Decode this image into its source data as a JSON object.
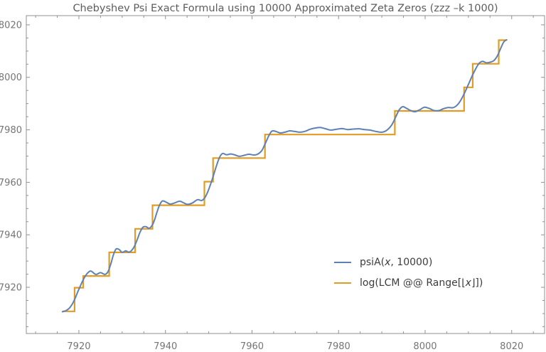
{
  "title": "Chebyshev Psi Exact Formula using 10000 Approximated Zeta Zeros (zzz –k 1000)",
  "colors": {
    "psi_line": "#5e81b5",
    "lcm_line": "#e09c24",
    "frame": "#919191",
    "tick_label": "#757575",
    "title_text": "#5d5d5d",
    "legend_text": "#3c3c3c",
    "background": "#ffffff"
  },
  "legend": {
    "psi": {
      "pre": "psiA(",
      "var": "x",
      "post": ", 10000)"
    },
    "lcm": {
      "pre": "log(LCM @@ Range[⌊",
      "var": "x",
      "post": "⌋])"
    }
  },
  "chart_data": {
    "type": "line",
    "title": "Chebyshev Psi Exact Formula using 10000 Approximated Zeta Zeros (zzz –k 1000)",
    "xlabel": "",
    "ylabel": "",
    "xlim": [
      7907.85,
      8027.6
    ],
    "ylim": [
      7902.4,
      8023.5
    ],
    "x_major_ticks": [
      7920,
      7940,
      7960,
      7980,
      8000,
      8020
    ],
    "y_major_ticks": [
      7920,
      7940,
      7960,
      7980,
      8000,
      8020
    ],
    "minor_tick_step": 5,
    "grid": false,
    "legend_position": "inside-bottom-right",
    "series": [
      {
        "name": "psiA(x, 10000)",
        "style": "smooth",
        "color": "#5e81b5",
        "points": [
          [
            7916.2,
            7910.7
          ],
          [
            7917.0,
            7911.1
          ],
          [
            7917.7,
            7911.9
          ],
          [
            7918.4,
            7913.4
          ],
          [
            7919.1,
            7915.7
          ],
          [
            7919.8,
            7918.5
          ],
          [
            7920.5,
            7921.1
          ],
          [
            7921.2,
            7923.5
          ],
          [
            7922.0,
            7925.4
          ],
          [
            7922.8,
            7926.2
          ],
          [
            7923.9,
            7924.9
          ],
          [
            7925.0,
            7925.6
          ],
          [
            7926.0,
            7924.9
          ],
          [
            7926.7,
            7925.9
          ],
          [
            7927.4,
            7929.0
          ],
          [
            7928.0,
            7932.5
          ],
          [
            7928.6,
            7934.6
          ],
          [
            7929.3,
            7934.4
          ],
          [
            7930.0,
            7933.3
          ],
          [
            7930.8,
            7933.9
          ],
          [
            7931.5,
            7933.4
          ],
          [
            7932.1,
            7933.9
          ],
          [
            7932.7,
            7935.2
          ],
          [
            7933.4,
            7937.8
          ],
          [
            7934.1,
            7940.9
          ],
          [
            7934.8,
            7942.9
          ],
          [
            7935.5,
            7943.1
          ],
          [
            7936.2,
            7942.5
          ],
          [
            7936.8,
            7943.3
          ],
          [
            7937.4,
            7945.3
          ],
          [
            7938.0,
            7948.4
          ],
          [
            7938.6,
            7951.2
          ],
          [
            7939.3,
            7952.9
          ],
          [
            7940.2,
            7952.4
          ],
          [
            7941.1,
            7951.7
          ],
          [
            7942.2,
            7952.2
          ],
          [
            7943.3,
            7952.8
          ],
          [
            7944.3,
            7952.1
          ],
          [
            7945.2,
            7951.6
          ],
          [
            7946.3,
            7952.2
          ],
          [
            7947.4,
            7953.4
          ],
          [
            7948.4,
            7953.1
          ],
          [
            7949.2,
            7954.4
          ],
          [
            7950.0,
            7957.3
          ],
          [
            7950.9,
            7961.6
          ],
          [
            7951.8,
            7966.4
          ],
          [
            7952.5,
            7969.5
          ],
          [
            7953.2,
            7971.0
          ],
          [
            7954.1,
            7970.5
          ],
          [
            7955.1,
            7970.8
          ],
          [
            7956.1,
            7970.4
          ],
          [
            7957.1,
            7969.9
          ],
          [
            7958.2,
            7970.3
          ],
          [
            7959.3,
            7970.7
          ],
          [
            7960.4,
            7970.4
          ],
          [
            7961.4,
            7970.8
          ],
          [
            7962.3,
            7972.2
          ],
          [
            7963.1,
            7974.9
          ],
          [
            7963.9,
            7977.8
          ],
          [
            7964.6,
            7979.5
          ],
          [
            7965.5,
            7979.4
          ],
          [
            7966.5,
            7978.8
          ],
          [
            7967.6,
            7979.1
          ],
          [
            7968.7,
            7979.6
          ],
          [
            7969.8,
            7979.4
          ],
          [
            7971.0,
            7979.1
          ],
          [
            7972.2,
            7979.4
          ],
          [
            7973.4,
            7980.2
          ],
          [
            7974.6,
            7980.7
          ],
          [
            7975.8,
            7980.9
          ],
          [
            7977.0,
            7980.4
          ],
          [
            7978.2,
            7979.9
          ],
          [
            7979.5,
            7980.2
          ],
          [
            7980.8,
            7980.5
          ],
          [
            7982.1,
            7980.1
          ],
          [
            7983.4,
            7980.3
          ],
          [
            7984.7,
            7980.4
          ],
          [
            7986.0,
            7980.1
          ],
          [
            7987.3,
            7979.9
          ],
          [
            7988.6,
            7979.4
          ],
          [
            7990.0,
            7979.1
          ],
          [
            7991.2,
            7979.9
          ],
          [
            7992.3,
            7981.9
          ],
          [
            7993.2,
            7984.9
          ],
          [
            7994.0,
            7987.6
          ],
          [
            7994.8,
            7988.8
          ],
          [
            7995.7,
            7988.2
          ],
          [
            7996.6,
            7987.4
          ],
          [
            7997.6,
            7986.9
          ],
          [
            7998.7,
            7987.6
          ],
          [
            7999.8,
            7988.6
          ],
          [
            8000.9,
            7988.2
          ],
          [
            8002.0,
            7987.4
          ],
          [
            8003.1,
            7987.3
          ],
          [
            8004.2,
            7988.0
          ],
          [
            8005.3,
            7988.5
          ],
          [
            8006.3,
            7988.4
          ],
          [
            8007.2,
            7989.1
          ],
          [
            8008.1,
            7990.9
          ],
          [
            8009.0,
            7993.7
          ],
          [
            8009.9,
            7996.9
          ],
          [
            8010.8,
            8000.3
          ],
          [
            8011.7,
            8003.3
          ],
          [
            8012.5,
            8005.4
          ],
          [
            8013.3,
            8006.1
          ],
          [
            8014.2,
            8005.5
          ],
          [
            8015.1,
            8005.8
          ],
          [
            8015.9,
            8006.4
          ],
          [
            8016.7,
            8008.2
          ],
          [
            8017.4,
            8010.8
          ],
          [
            8018.1,
            8013.3
          ],
          [
            8018.6,
            8014.1
          ],
          [
            8018.85,
            8014.3
          ]
        ]
      },
      {
        "name": "log(LCM @@ Range[⌊x⌋])",
        "style": "step",
        "color": "#e09c24",
        "start": [
          7916.2,
          7910.86
        ],
        "jumps": [
          [
            7919,
            7919.84
          ],
          [
            7921,
            7924.33
          ],
          [
            7927,
            7933.31
          ],
          [
            7933,
            7942.29
          ],
          [
            7937,
            7951.27
          ],
          [
            7949,
            7960.25
          ],
          [
            7951,
            7969.23
          ],
          [
            7963,
            7978.21
          ],
          [
            7993,
            7987.2
          ],
          [
            8009,
            7996.18
          ],
          [
            8011,
            8005.17
          ],
          [
            8017,
            8014.15
          ]
        ],
        "end_x": 8018.85
      }
    ]
  }
}
